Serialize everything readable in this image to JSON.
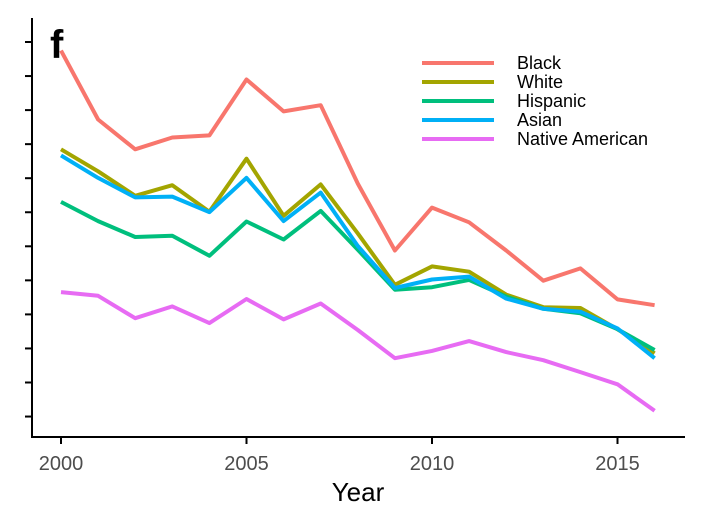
{
  "panel_label": "f",
  "chart_data": {
    "type": "line",
    "title": "",
    "xlabel": "Year",
    "ylabel": "",
    "x": [
      2000,
      2001,
      2002,
      2003,
      2004,
      2005,
      2006,
      2007,
      2008,
      2009,
      2010,
      2011,
      2012,
      2013,
      2014,
      2015,
      2016
    ],
    "xlim": [
      1999.2,
      2016.7
    ],
    "x_ticks": [
      2000,
      2005,
      2010,
      2015
    ],
    "x_tick_labels": [
      "2000",
      "2005",
      "2010",
      "2015"
    ],
    "y_tick_count": 12,
    "y_tick_labels_shown": false,
    "grid": false,
    "legend_position": "top-right",
    "series": [
      {
        "name": "Black",
        "color": "#F8766D",
        "values": [
          0.979,
          0.81,
          0.737,
          0.766,
          0.771,
          0.908,
          0.83,
          0.845,
          0.653,
          0.489,
          0.594,
          0.558,
          0.489,
          0.415,
          0.445,
          0.369,
          0.355
        ]
      },
      {
        "name": "White",
        "color": "#A3A500",
        "values": [
          0.737,
          0.683,
          0.623,
          0.649,
          0.584,
          0.714,
          0.574,
          0.651,
          0.531,
          0.405,
          0.45,
          0.437,
          0.381,
          0.35,
          0.348,
          0.296,
          0.237
        ]
      },
      {
        "name": "Hispanic",
        "color": "#00BF7D",
        "values": [
          0.608,
          0.561,
          0.522,
          0.525,
          0.476,
          0.56,
          0.516,
          0.586,
          0.491,
          0.393,
          0.399,
          0.417,
          0.376,
          0.346,
          0.335,
          0.296,
          0.245
        ]
      },
      {
        "name": "Asian",
        "color": "#00B0F6",
        "values": [
          0.722,
          0.667,
          0.619,
          0.621,
          0.583,
          0.667,
          0.561,
          0.631,
          0.5,
          0.397,
          0.418,
          0.425,
          0.371,
          0.346,
          0.339,
          0.298,
          0.225
        ]
      },
      {
        "name": "Native American",
        "color": "#E76BF3",
        "values": [
          0.387,
          0.378,
          0.323,
          0.352,
          0.311,
          0.37,
          0.32,
          0.359,
          0.294,
          0.225,
          0.243,
          0.267,
          0.24,
          0.22,
          0.191,
          0.161,
          0.096
        ]
      }
    ]
  }
}
